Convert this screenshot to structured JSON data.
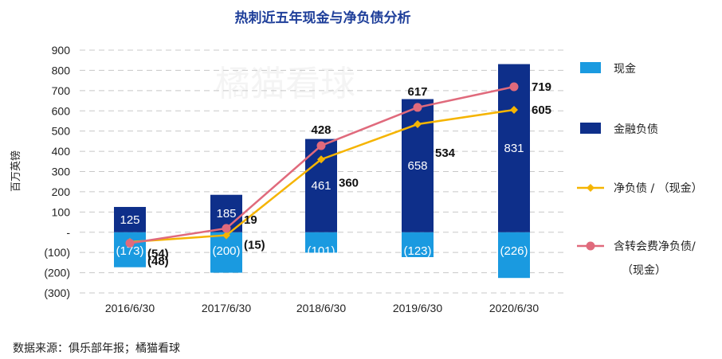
{
  "chart_data": {
    "type": "bar",
    "title": "热刺近五年现金与净负债分析",
    "ylabel": "百万英镑",
    "xlabel": "",
    "ylim": [
      -300,
      900
    ],
    "yticks": [
      900,
      800,
      700,
      600,
      500,
      400,
      300,
      200,
      100,
      0,
      -100,
      -200,
      -300
    ],
    "ytick_labels": [
      "900",
      "800",
      "700",
      "600",
      "500",
      "400",
      "300",
      "200",
      "100",
      "-",
      "(100)",
      "(200)",
      "(300)"
    ],
    "categories": [
      "2016/6/30",
      "2017/6/30",
      "2018/6/30",
      "2019/6/30",
      "2020/6/30"
    ],
    "series": [
      {
        "name": "现金",
        "kind": "bar",
        "color": "#1a9ae0",
        "values": [
          -173,
          -200,
          -101,
          -123,
          -226
        ],
        "labels": [
          "(173)",
          "(200)",
          "(101)",
          "(123)",
          "(226)"
        ]
      },
      {
        "name": "金融负债",
        "kind": "bar",
        "color": "#0e2f8a",
        "values": [
          125,
          185,
          461,
          658,
          831
        ],
        "labels": [
          "125",
          "185",
          "461",
          "658",
          "831"
        ]
      },
      {
        "name": "净负债 / （现金）",
        "kind": "line",
        "color": "#f5b400",
        "values": [
          -48,
          -15,
          360,
          534,
          605
        ],
        "labels": [
          "(48)",
          "(15)",
          "360",
          "534",
          "605"
        ]
      },
      {
        "name": "含转会费净负债/（现金）",
        "kind": "line",
        "color": "#e06a7c",
        "values": [
          -54,
          19,
          428,
          617,
          719
        ],
        "labels": [
          "(54)",
          "19",
          "428",
          "617",
          "719"
        ]
      }
    ],
    "legend": {
      "position": "right",
      "entries": [
        "现金",
        "金融负债",
        "净负债 / （现金）",
        "含转会费净负债/",
        "（现金）"
      ]
    },
    "grid": true
  },
  "source_note": "数据来源：俱乐部年报；橘猫看球",
  "watermark": "橘猫看球"
}
